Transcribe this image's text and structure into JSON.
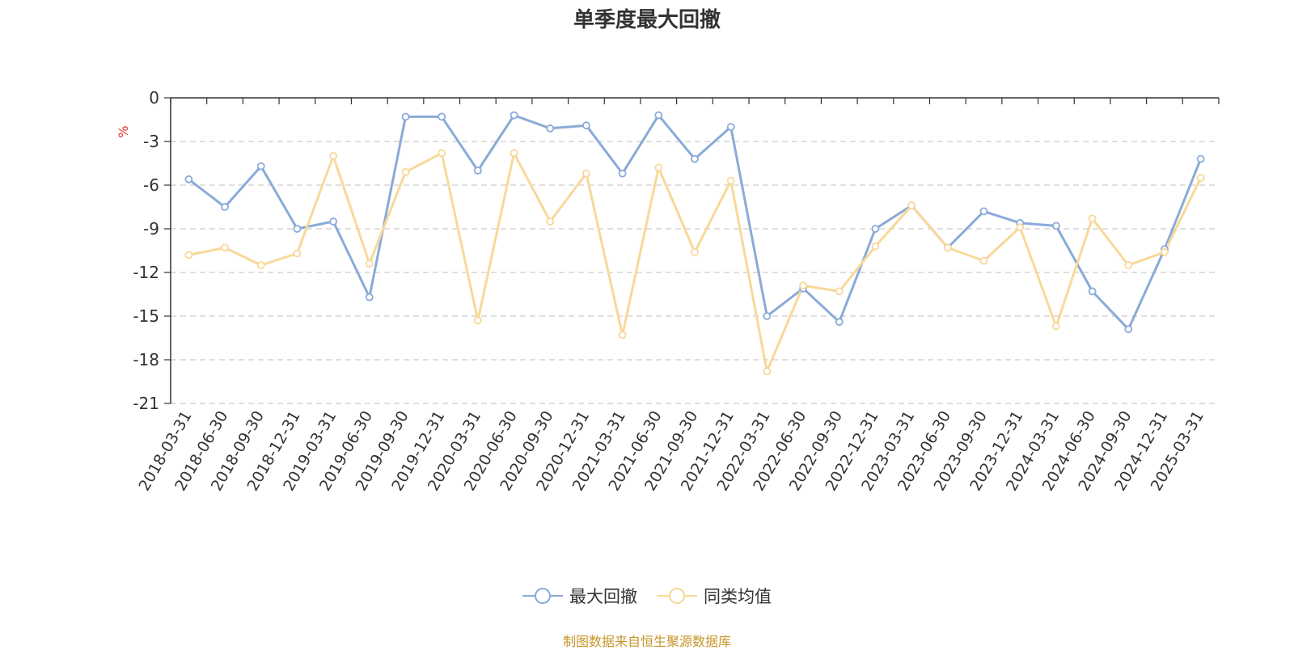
{
  "title": "单季度最大回撤",
  "source_note": "制图数据来自恒生聚源数据库",
  "colors": {
    "series1": "#8aaad8",
    "series2": "#f8d89a",
    "unit": "#e03030",
    "grid": "#cccccc",
    "axis": "#333333",
    "source": "#c8962c"
  },
  "chart_data": {
    "type": "line",
    "title": "单季度最大回撤",
    "ylabel": "%",
    "ylim": [
      -21,
      0
    ],
    "yticks": [
      "0",
      "-3",
      "-6",
      "-9",
      "-12",
      "-15",
      "-18",
      "-21"
    ],
    "ytick_values": [
      0,
      -3,
      -6,
      -9,
      -12,
      -15,
      -18,
      -21
    ],
    "grid": true,
    "legend_position": "bottom",
    "categories": [
      "2018-03-31",
      "2018-06-30",
      "2018-09-30",
      "2018-12-31",
      "2019-03-31",
      "2019-06-30",
      "2019-09-30",
      "2019-12-31",
      "2020-03-31",
      "2020-06-30",
      "2020-09-30",
      "2020-12-31",
      "2021-03-31",
      "2021-06-30",
      "2021-09-30",
      "2021-12-31",
      "2022-03-31",
      "2022-06-30",
      "2022-09-30",
      "2022-12-31",
      "2023-03-31",
      "2023-06-30",
      "2023-09-30",
      "2023-12-31",
      "2024-03-31",
      "2024-06-30",
      "2024-09-30",
      "2024-12-31",
      "2025-03-31"
    ],
    "series": [
      {
        "name": "最大回撤",
        "values": [
          -5.6,
          -7.5,
          -4.7,
          -9.0,
          -8.5,
          -13.7,
          -1.3,
          -1.3,
          -5.0,
          -1.2,
          -2.1,
          -1.9,
          -5.2,
          -1.2,
          -4.2,
          -2.0,
          -15.0,
          -13.1,
          -15.4,
          -9.0,
          -7.4,
          -10.3,
          -7.8,
          -8.6,
          -8.8,
          -13.3,
          -15.9,
          -10.4,
          -4.2
        ]
      },
      {
        "name": "同类均值",
        "values": [
          -10.8,
          -10.3,
          -11.5,
          -10.7,
          -4.0,
          -11.4,
          -5.1,
          -3.8,
          -15.3,
          -3.8,
          -8.5,
          -5.2,
          -16.3,
          -4.8,
          -10.6,
          -5.7,
          -18.8,
          -12.9,
          -13.3,
          -10.2,
          -7.4,
          -10.3,
          -11.2,
          -8.9,
          -15.7,
          -8.3,
          -11.5,
          -10.6,
          -5.5
        ]
      }
    ]
  }
}
